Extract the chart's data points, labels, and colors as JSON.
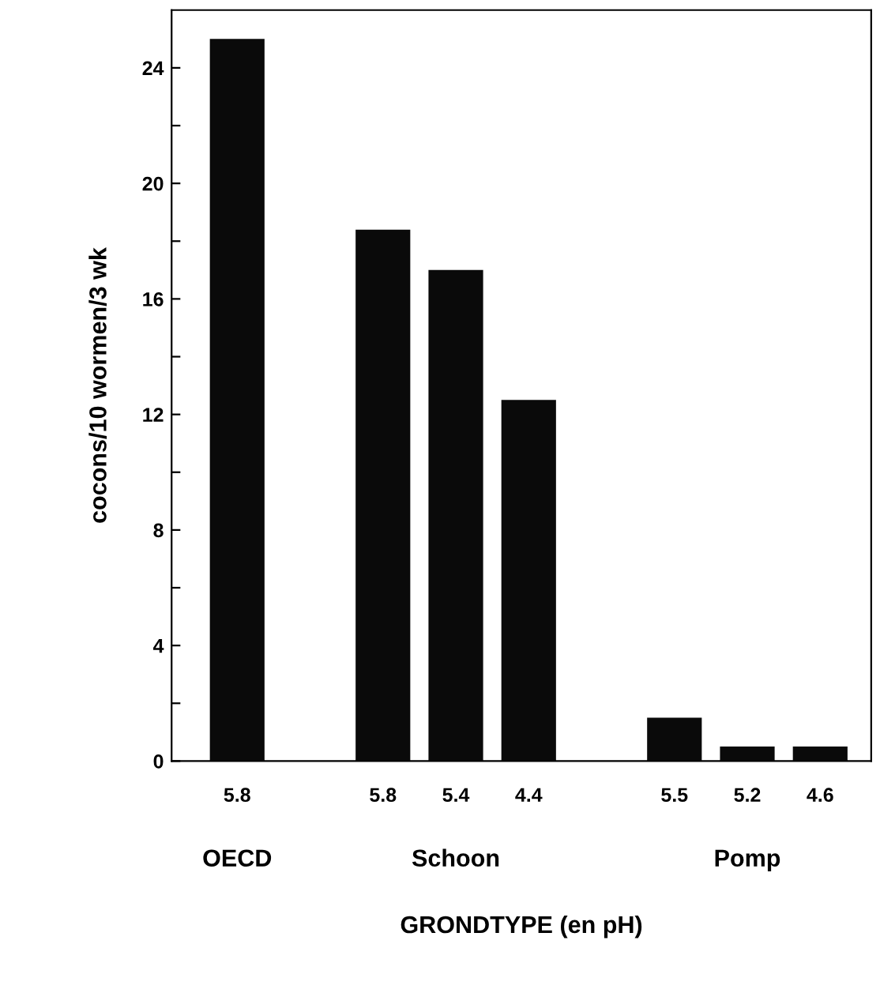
{
  "chart_data": {
    "type": "bar",
    "xlabel": "GRONDTYPE (en pH)",
    "ylabel": "cocons/10 wormen/3 wk",
    "categories": [
      "5.8",
      null,
      "5.8",
      "5.4",
      "4.4",
      null,
      "5.5",
      "5.2",
      "4.6"
    ],
    "values": [
      25,
      null,
      18.4,
      17.0,
      12.5,
      null,
      1.5,
      0.5,
      0.5
    ],
    "color": "#0a0a0a",
    "annotations": [
      "OECD",
      "Schoon",
      "Pomp"
    ],
    "ylim": [
      0,
      26
    ],
    "yticks": [
      0,
      {
        "value": 2,
        "label": null
      },
      4,
      {
        "value": 6,
        "label": null
      },
      8,
      {
        "value": 10,
        "label": null
      },
      12,
      {
        "value": 14,
        "label": null
      },
      16,
      {
        "value": 18,
        "label": null
      },
      20,
      {
        "value": 22,
        "label": null
      },
      24
    ],
    "grid": false,
    "legend": false
  }
}
